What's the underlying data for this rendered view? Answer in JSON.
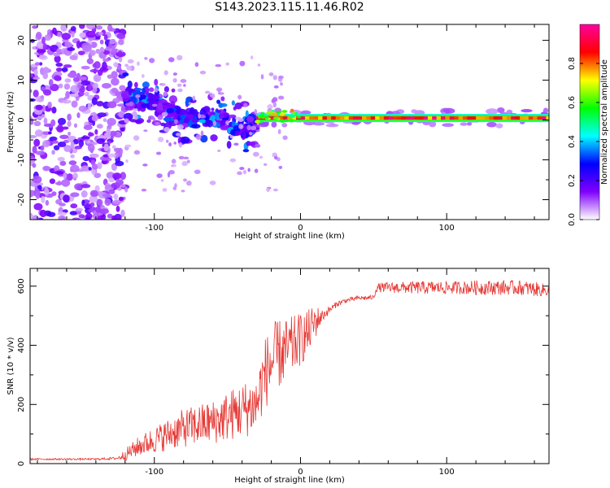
{
  "page_title": "S143.2023.115.11.46.R02",
  "chart_data": [
    {
      "type": "heatmap",
      "xlabel": "Height of straight line (km)",
      "ylabel": "Frequency (Hz)",
      "xlim": [
        -185,
        170
      ],
      "ylim": [
        -25,
        24
      ],
      "xticks": [
        -100,
        0,
        100
      ],
      "yticks": [
        -20,
        -10,
        0,
        10,
        20
      ],
      "colorbar": {
        "label": "Normalized spectral amplitude",
        "range": [
          0,
          1
        ],
        "ticks": [
          "0.0",
          "0.2",
          "0.4",
          "0.6",
          "0.8"
        ],
        "colors": [
          "#ffffff",
          "#8000ff",
          "#0000ff",
          "#00ffff",
          "#00ff00",
          "#ffff00",
          "#ff0000",
          "#ff00a0"
        ]
      },
      "features": {
        "scatter_region": {
          "x_range": [
            -185,
            -120
          ],
          "freq_range": [
            -25,
            24
          ],
          "amplitude": "low"
        },
        "descending_band": {
          "x": [
            -120,
            -100,
            -80,
            -60,
            -40,
            -30
          ],
          "freq": [
            6,
            4,
            0,
            1,
            -2,
            -1
          ],
          "amplitude": "0.3-0.5"
        },
        "steady_line": {
          "x_range": [
            -30,
            170
          ],
          "freq": 0.5,
          "amplitude": "0.8-1.0"
        }
      }
    },
    {
      "type": "line",
      "xlabel": "Height of straight line (km)",
      "ylabel": "SNR (10 * v/v)",
      "xlim": [
        -185,
        170
      ],
      "ylim": [
        0,
        660
      ],
      "xticks": [
        -100,
        0,
        100
      ],
      "yticks": [
        0,
        200,
        400,
        600
      ],
      "color": "#e53935",
      "x": [
        -185,
        -160,
        -140,
        -125,
        -120,
        -110,
        -100,
        -90,
        -80,
        -70,
        -60,
        -50,
        -40,
        -30,
        -25,
        -20,
        -15,
        -10,
        -5,
        0,
        5,
        10,
        15,
        20,
        25,
        30,
        35,
        40,
        45,
        50,
        52,
        60,
        70,
        80,
        90,
        100,
        110,
        120,
        130,
        140,
        150,
        160,
        170
      ],
      "y": [
        15,
        15,
        15,
        18,
        30,
        60,
        80,
        100,
        120,
        130,
        140,
        160,
        180,
        200,
        300,
        340,
        370,
        380,
        400,
        420,
        440,
        480,
        500,
        520,
        540,
        550,
        555,
        560,
        560,
        562,
        595,
        595,
        595,
        595,
        595,
        595,
        595,
        595,
        595,
        595,
        595,
        590,
        585
      ],
      "noise": [
        3,
        3,
        3,
        5,
        20,
        35,
        45,
        55,
        65,
        70,
        75,
        85,
        95,
        100,
        120,
        130,
        120,
        110,
        100,
        90,
        80,
        60,
        20,
        12,
        10,
        8,
        8,
        8,
        8,
        8,
        15,
        18,
        20,
        22,
        22,
        22,
        22,
        25,
        25,
        25,
        25,
        25,
        20
      ]
    }
  ]
}
